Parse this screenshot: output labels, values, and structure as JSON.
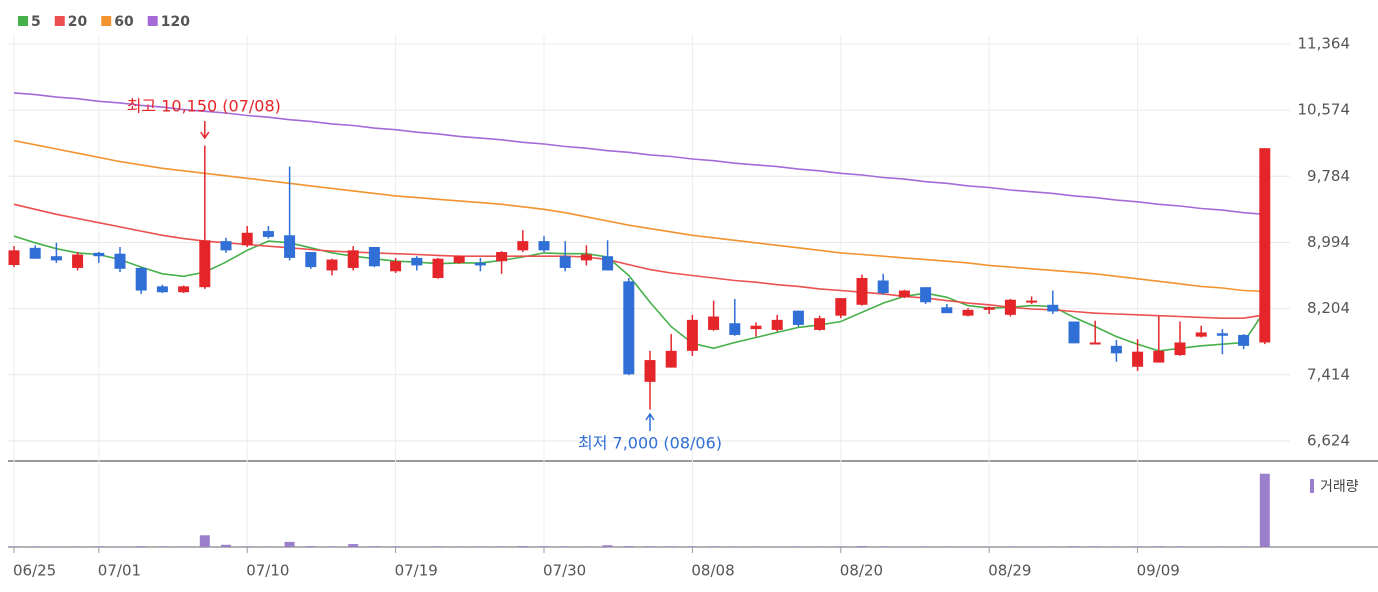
{
  "chart_data": {
    "type": "candlestick",
    "categories": [
      "06/25",
      null,
      null,
      null,
      "07/01",
      null,
      null,
      null,
      null,
      null,
      null,
      "07/10",
      null,
      null,
      null,
      null,
      null,
      null,
      "07/19",
      null,
      null,
      null,
      null,
      null,
      null,
      "07/30",
      null,
      null,
      null,
      null,
      null,
      null,
      "08/08",
      null,
      null,
      null,
      null,
      null,
      null,
      "08/20",
      null,
      null,
      null,
      null,
      null,
      null,
      "08/29",
      null,
      null,
      null,
      null,
      null,
      null,
      "09/09",
      null,
      null,
      null,
      null,
      null,
      null
    ],
    "open": [
      8725,
      8930,
      8830,
      8690,
      8870,
      8860,
      8690,
      8470,
      8400,
      8460,
      9010,
      8960,
      9130,
      9080,
      8880,
      8660,
      8690,
      8940,
      8650,
      8810,
      8570,
      8750,
      8750,
      8770,
      8900,
      9010,
      8830,
      8780,
      8830,
      8530,
      7330,
      7500,
      7700,
      7950,
      8030,
      7960,
      7950,
      8180,
      7950,
      8120,
      8250,
      8540,
      8340,
      8460,
      8220,
      8120,
      8190,
      8130,
      8280,
      8250,
      8050,
      7780,
      7760,
      7510,
      7560,
      7650,
      7870,
      7910,
      7890,
      7800
    ],
    "high": [
      8950,
      8960,
      8990,
      8880,
      8880,
      8940,
      8700,
      8490,
      8480,
      10150,
      9050,
      9190,
      9190,
      9900,
      8860,
      8800,
      8950,
      8930,
      8810,
      8830,
      8810,
      8840,
      8810,
      8890,
      9140,
      9070,
      9010,
      8960,
      9020,
      8570,
      7700,
      7900,
      8130,
      8300,
      8320,
      8040,
      8130,
      8180,
      8120,
      8320,
      8610,
      8620,
      8430,
      8460,
      8260,
      8210,
      8230,
      8320,
      8350,
      8420,
      8050,
      8060,
      7830,
      7840,
      8110,
      8050,
      8000,
      7960,
      7900,
      10120
    ],
    "low": [
      8700,
      8800,
      8750,
      8660,
      8750,
      8640,
      8380,
      8390,
      8390,
      8440,
      8870,
      8940,
      9040,
      8780,
      8680,
      8600,
      8660,
      8700,
      8630,
      8660,
      8560,
      8740,
      8650,
      8620,
      8880,
      8880,
      8650,
      8720,
      8660,
      7410,
      7000,
      7500,
      7640,
      7940,
      7880,
      7870,
      7930,
      7990,
      7940,
      8090,
      8240,
      8370,
      8330,
      8260,
      8150,
      8110,
      8140,
      8110,
      8260,
      8140,
      7790,
      7780,
      7570,
      7460,
      7560,
      7640,
      7860,
      7660,
      7720,
      7780
    ],
    "close": [
      8900,
      8800,
      8780,
      8850,
      8830,
      8680,
      8420,
      8400,
      8470,
      9020,
      8900,
      9110,
      9060,
      8810,
      8700,
      8790,
      8900,
      8710,
      8770,
      8720,
      8800,
      8830,
      8720,
      8880,
      9010,
      8900,
      8690,
      8850,
      8660,
      7420,
      7590,
      7700,
      8070,
      8110,
      7890,
      8000,
      8070,
      8010,
      8090,
      8330,
      8570,
      8390,
      8420,
      8280,
      8150,
      8190,
      8220,
      8310,
      8300,
      8170,
      7790,
      7800,
      7670,
      7690,
      7700,
      7800,
      7920,
      7880,
      7760,
      10120
    ],
    "up_color": "#e4262b",
    "down_color": "#2f6fd6",
    "series": [
      {
        "name": "5",
        "color": "#46b04a",
        "values": [
          9070,
          8990,
          8920,
          8870,
          8850,
          8790,
          8700,
          8620,
          8590,
          8640,
          8760,
          8900,
          9010,
          8990,
          8930,
          8870,
          8830,
          8800,
          8770,
          8760,
          8740,
          8750,
          8750,
          8780,
          8820,
          8870,
          8860,
          8860,
          8820,
          8600,
          8280,
          7990,
          7790,
          7730,
          7800,
          7860,
          7920,
          7980,
          8010,
          8050,
          8160,
          8270,
          8350,
          8390,
          8340,
          8240,
          8210,
          8220,
          8240,
          8230,
          8100,
          7990,
          7870,
          7780,
          7700,
          7730,
          7760,
          7780,
          7800,
          8180
        ]
      },
      {
        "name": "20",
        "color": "#ec5050",
        "values": [
          9450,
          9390,
          9330,
          9280,
          9230,
          9180,
          9130,
          9080,
          9040,
          9010,
          8990,
          8970,
          8950,
          8930,
          8910,
          8890,
          8880,
          8870,
          8860,
          8850,
          8840,
          8830,
          8830,
          8830,
          8830,
          8830,
          8830,
          8820,
          8790,
          8730,
          8670,
          8630,
          8600,
          8570,
          8540,
          8520,
          8490,
          8470,
          8440,
          8420,
          8400,
          8380,
          8350,
          8330,
          8300,
          8270,
          8250,
          8220,
          8200,
          8190,
          8170,
          8150,
          8140,
          8130,
          8120,
          8110,
          8100,
          8090,
          8090,
          8130
        ]
      },
      {
        "name": "60",
        "color": "#f39330",
        "values": [
          10210,
          10160,
          10110,
          10060,
          10010,
          9960,
          9920,
          9880,
          9850,
          9820,
          9790,
          9760,
          9730,
          9700,
          9670,
          9640,
          9610,
          9580,
          9550,
          9530,
          9510,
          9490,
          9470,
          9450,
          9420,
          9390,
          9350,
          9300,
          9250,
          9200,
          9160,
          9120,
          9080,
          9050,
          9020,
          8990,
          8960,
          8930,
          8900,
          8870,
          8850,
          8830,
          8810,
          8790,
          8770,
          8750,
          8720,
          8700,
          8680,
          8660,
          8640,
          8620,
          8590,
          8560,
          8530,
          8500,
          8470,
          8450,
          8420,
          8410
        ]
      },
      {
        "name": "120",
        "color": "#a46ad8",
        "values": [
          10780,
          10760,
          10730,
          10710,
          10680,
          10660,
          10630,
          10610,
          10580,
          10560,
          10540,
          10510,
          10490,
          10460,
          10440,
          10410,
          10390,
          10360,
          10340,
          10310,
          10290,
          10260,
          10240,
          10220,
          10190,
          10170,
          10140,
          10120,
          10090,
          10070,
          10040,
          10020,
          9990,
          9970,
          9940,
          9920,
          9900,
          9870,
          9850,
          9820,
          9800,
          9770,
          9750,
          9720,
          9700,
          9670,
          9650,
          9620,
          9600,
          9580,
          9550,
          9530,
          9500,
          9480,
          9450,
          9430,
          9400,
          9380,
          9350,
          9330
        ]
      }
    ],
    "ylim": [
      6385,
      11471
    ],
    "yticks": [
      {
        "value": 6624,
        "label": "6,624"
      },
      {
        "value": 7414,
        "label": "7,414"
      },
      {
        "value": 8204,
        "label": "8,204"
      },
      {
        "value": 8994,
        "label": "8,994"
      },
      {
        "value": 9784,
        "label": "9,784"
      },
      {
        "value": 10574,
        "label": "10,574"
      },
      {
        "value": 11364,
        "label": "11,364"
      }
    ],
    "grid": true,
    "annotations": {
      "high": "최고 10,150 (07/08)",
      "low": "최저 7,000 (08/06)",
      "high_color": "#e4262b",
      "low_color": "#2f6fd6"
    },
    "volume": {
      "name": "거래량",
      "color": "#9b7fcb",
      "values": [
        40000,
        35000,
        30000,
        30000,
        45000,
        30000,
        50000,
        40000,
        35000,
        800000,
        150000,
        40000,
        30000,
        350000,
        60000,
        40000,
        200000,
        50000,
        40000,
        30000,
        40000,
        30000,
        35000,
        40000,
        60000,
        50000,
        40000,
        30000,
        120000,
        60000,
        50000,
        40000,
        45000,
        40000,
        35000,
        30000,
        30000,
        35000,
        30000,
        40000,
        60000,
        40000,
        30000,
        35000,
        30000,
        30000,
        30000,
        35000,
        30000,
        30000,
        50000,
        40000,
        35000,
        40000,
        45000,
        40000,
        30000,
        30000,
        35000,
        5000000
      ],
      "ylim": [
        0,
        5800000
      ]
    }
  }
}
